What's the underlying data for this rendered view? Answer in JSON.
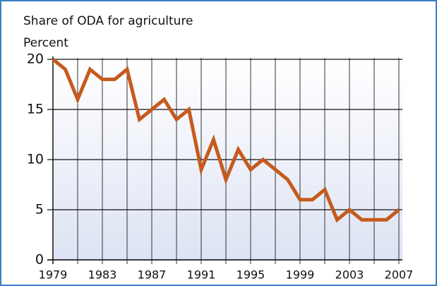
{
  "chart_data": {
    "type": "line",
    "title": "Share of ODA for agriculture",
    "y_label": "Percent",
    "x": [
      1979,
      1980,
      1981,
      1982,
      1983,
      1984,
      1985,
      1986,
      1987,
      1988,
      1989,
      1990,
      1991,
      1992,
      1993,
      1994,
      1995,
      1996,
      1997,
      1998,
      1999,
      2000,
      2001,
      2002,
      2003,
      2004,
      2005,
      2006,
      2007
    ],
    "series": [
      {
        "name": "Share of ODA for agriculture",
        "color": "#c65a1e",
        "values": [
          20,
          19,
          16,
          19,
          18,
          18,
          19,
          14,
          15,
          16,
          14,
          15,
          9,
          12,
          8,
          11,
          9,
          10,
          9,
          8,
          6,
          6,
          7,
          4,
          5,
          4,
          4,
          4,
          5
        ]
      }
    ],
    "xlim": [
      1979,
      2007
    ],
    "xticks": [
      1979,
      1983,
      1987,
      1991,
      1995,
      1999,
      2003,
      2007
    ],
    "ylim": [
      0,
      20
    ],
    "yticks": [
      0,
      5,
      10,
      15,
      20
    ],
    "grid": true
  }
}
